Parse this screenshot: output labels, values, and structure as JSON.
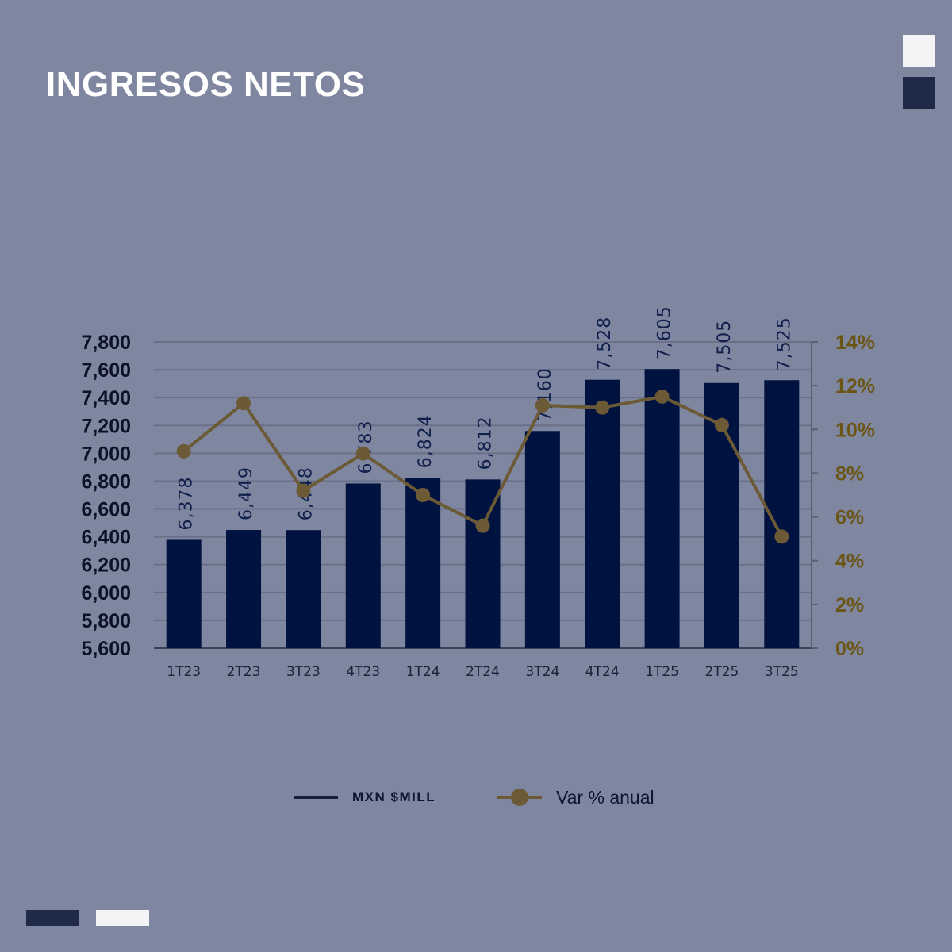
{
  "header": {
    "title": "INGRESOS NETOS"
  },
  "colors": {
    "background": "#7f869f",
    "bars": "#00123f",
    "line": "#6b5a35",
    "right_axis_text": "#6a5515",
    "left_axis_text": "#0b1226",
    "accent_navy": "#1e2a47",
    "accent_white": "#f4f4f6"
  },
  "legend": {
    "bar_label": "MXN $MILL",
    "line_label": "Var % anual"
  },
  "chart_data": {
    "type": "bar",
    "categories": [
      "1T23",
      "2T23",
      "3T23",
      "4T23",
      "1T24",
      "2T24",
      "3T24",
      "4T24",
      "1T25",
      "2T25",
      "3T25"
    ],
    "series": [
      {
        "name": "MXN $MILL",
        "type": "bar",
        "axis": "left",
        "values": [
          6378,
          6449,
          6448,
          6783,
          6824,
          6812,
          7160,
          7528,
          7605,
          7505,
          7525
        ],
        "labels": [
          "6,378",
          "6,449",
          "6,448",
          "6,783",
          "6,824",
          "6,812",
          "7,160",
          "7,528",
          "7,605",
          "7,505",
          "7,525"
        ]
      },
      {
        "name": "Var % anual",
        "type": "line",
        "axis": "right",
        "values": [
          9.0,
          11.2,
          7.2,
          8.9,
          7.0,
          5.6,
          11.1,
          11.0,
          11.5,
          10.2,
          5.1
        ]
      }
    ],
    "y_left": {
      "lim": [
        5600,
        7800
      ],
      "ticks": [
        5600,
        5800,
        6000,
        6200,
        6400,
        6600,
        6800,
        7000,
        7200,
        7400,
        7600,
        7800
      ],
      "tick_labels": [
        "5,600",
        "5,800",
        "6,000",
        "6,200",
        "6,400",
        "6,600",
        "6,800",
        "7,000",
        "7,200",
        "7,400",
        "7,600",
        "7,800"
      ]
    },
    "y_right": {
      "lim": [
        0,
        14
      ],
      "ticks": [
        0,
        2,
        4,
        6,
        8,
        10,
        12,
        14
      ],
      "tick_labels": [
        "0%",
        "2%",
        "4%",
        "6%",
        "8%",
        "10%",
        "12%",
        "14%"
      ]
    },
    "grid": true,
    "legend_position": "bottom"
  }
}
